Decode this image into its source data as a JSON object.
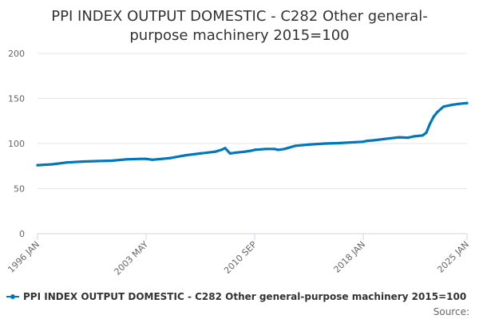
{
  "chart_data": {
    "type": "line",
    "title_lines": [
      "PPI INDEX OUTPUT DOMESTIC - C282 Other general-",
      "purpose machinery 2015=100"
    ],
    "xlabel": "",
    "ylabel": "",
    "ylim": [
      0,
      200
    ],
    "y_ticks": [
      0,
      50,
      100,
      150,
      200
    ],
    "x_range": [
      "1996 JAN",
      "2025 JAN"
    ],
    "x_tick_labels": [
      "1996 JAN",
      "2003 MAY",
      "2010 SEP",
      "2018 JAN",
      "2025 JAN"
    ],
    "grid": true,
    "legend_position": "bottom-center",
    "credits": "Source:",
    "colors": {
      "series": "#0077bb",
      "grid": "#e6e6e6",
      "text": "#333333",
      "axis_text": "#666666"
    },
    "series": [
      {
        "name": "PPI INDEX OUTPUT DOMESTIC - C282 Other general-purpose machinery 2015=100",
        "x": [
          "1996-01",
          "1997-01",
          "1998-01",
          "1999-01",
          "2000-01",
          "2001-01",
          "2002-01",
          "2003-01",
          "2003-05",
          "2003-10",
          "2004-06",
          "2005-01",
          "2006-01",
          "2007-01",
          "2008-01",
          "2008-06",
          "2008-09",
          "2009-01",
          "2009-06",
          "2010-01",
          "2010-06",
          "2010-09",
          "2011-06",
          "2012-01",
          "2012-04",
          "2012-09",
          "2013-06",
          "2014-06",
          "2015-06",
          "2016-06",
          "2017-06",
          "2018-01",
          "2018-04",
          "2018-09",
          "2019-06",
          "2020-06",
          "2021-01",
          "2021-06",
          "2022-01",
          "2022-04",
          "2022-07",
          "2022-10",
          "2023-01",
          "2023-06",
          "2024-01",
          "2024-06",
          "2025-01"
        ],
        "values": [
          76,
          77,
          79,
          80,
          80.5,
          81,
          82.5,
          83,
          83,
          82,
          83,
          84,
          87,
          89,
          91,
          93,
          95,
          89,
          90,
          91,
          92,
          93,
          94,
          94,
          93,
          94,
          97.5,
          99,
          100,
          100.5,
          101.5,
          102,
          103,
          103.5,
          105,
          107,
          106.5,
          108,
          109,
          112,
          122,
          130,
          135,
          141,
          143,
          144,
          145
        ]
      }
    ]
  }
}
